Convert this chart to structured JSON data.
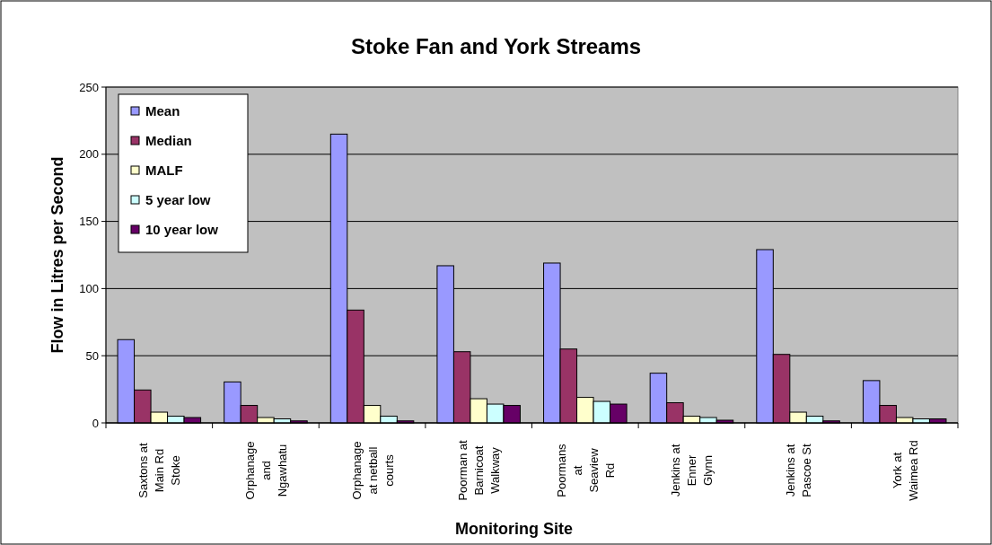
{
  "chart_data": {
    "type": "bar",
    "title": "Stoke Fan and York Streams",
    "xlabel": "Monitoring Site",
    "ylabel": "Flow in Litres per Second",
    "categories": [
      "Saxtons at\nMain Rd\nStoke",
      "Orphanage\nand\nNgawhatu",
      "Orphanage\nat netball\ncourts",
      "Poorman at\nBarnicoat\nWalkway",
      "Poormans\nat\nSeaview\nRd",
      "Jenkins at\nEnner\nGlynn",
      "Jenkins at\nPascoe St",
      "York at\nWaimea Rd"
    ],
    "series": [
      {
        "name": "Mean",
        "color": "#9999ff",
        "values": [
          62,
          30.5,
          215,
          117,
          119,
          37,
          129,
          31.5
        ]
      },
      {
        "name": "Median",
        "color": "#993366",
        "values": [
          24.5,
          13,
          84,
          53,
          55,
          15,
          51,
          13
        ]
      },
      {
        "name": "MALF",
        "color": "#ffffcc",
        "values": [
          8,
          4,
          13,
          18,
          19,
          5,
          8,
          4
        ]
      },
      {
        "name": "5 year low",
        "color": "#ccffff",
        "values": [
          5,
          3,
          5,
          14,
          16,
          4,
          5,
          3
        ]
      },
      {
        "name": "10 year low",
        "color": "#660066",
        "values": [
          4,
          1.5,
          1.5,
          13,
          14,
          2,
          1.5,
          3
        ]
      }
    ],
    "ylim": [
      0,
      250
    ],
    "yticks": [
      0,
      50,
      100,
      150,
      200,
      250
    ],
    "grid": "y",
    "legend": "top left"
  }
}
